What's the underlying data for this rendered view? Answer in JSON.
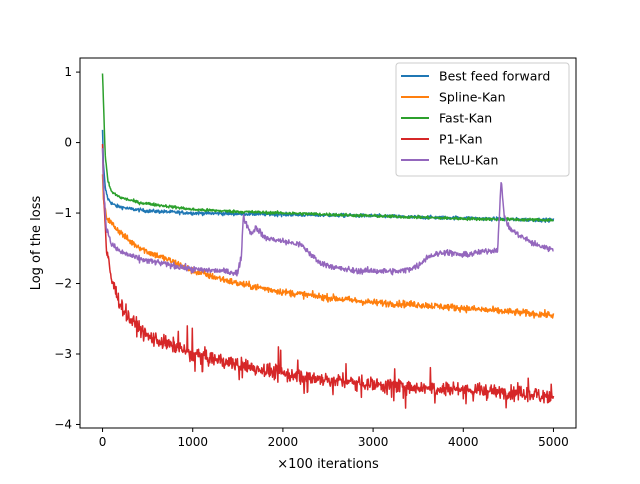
{
  "chart_data": {
    "type": "line",
    "title": "",
    "xlabel": "×100 iterations",
    "ylabel": "Log of the loss",
    "xlim": [
      -250,
      5250
    ],
    "ylim": [
      -4.05,
      1.2
    ],
    "xticks": [
      0,
      1000,
      2000,
      3000,
      4000,
      5000
    ],
    "xtick_labels": [
      "0",
      "1000",
      "2000",
      "3000",
      "4000",
      "5000"
    ],
    "yticks": [
      1,
      0,
      -1,
      -2,
      -3,
      -4
    ],
    "ytick_labels": [
      "1",
      "0",
      "−1",
      "−2",
      "−3",
      "−4"
    ],
    "grid": false,
    "legend": "top-right",
    "series": [
      {
        "name": "Best feed forward",
        "color": "#1f77b4",
        "noise": 0.018,
        "points": [
          [
            0,
            0.18
          ],
          [
            10,
            -0.3
          ],
          [
            30,
            -0.65
          ],
          [
            60,
            -0.8
          ],
          [
            100,
            -0.86
          ],
          [
            150,
            -0.9
          ],
          [
            300,
            -0.94
          ],
          [
            500,
            -0.97
          ],
          [
            1000,
            -1.0
          ],
          [
            1500,
            -1.01
          ],
          [
            2000,
            -1.02
          ],
          [
            2500,
            -1.03
          ],
          [
            3000,
            -1.04
          ],
          [
            3500,
            -1.06
          ],
          [
            4000,
            -1.07
          ],
          [
            4500,
            -1.09
          ],
          [
            5000,
            -1.1
          ]
        ]
      },
      {
        "name": "Spline-Kan",
        "color": "#ff7f0e",
        "noise": 0.035,
        "points": [
          [
            0,
            -0.45
          ],
          [
            10,
            -0.8
          ],
          [
            40,
            -1.05
          ],
          [
            100,
            -1.15
          ],
          [
            300,
            -1.4
          ],
          [
            500,
            -1.55
          ],
          [
            800,
            -1.7
          ],
          [
            1000,
            -1.82
          ],
          [
            1500,
            -2.0
          ],
          [
            2000,
            -2.12
          ],
          [
            2500,
            -2.2
          ],
          [
            3000,
            -2.27
          ],
          [
            3500,
            -2.3
          ],
          [
            4000,
            -2.35
          ],
          [
            4500,
            -2.4
          ],
          [
            5000,
            -2.45
          ]
        ]
      },
      {
        "name": "Fast-Kan",
        "color": "#2ca02c",
        "noise": 0.015,
        "points": [
          [
            0,
            0.98
          ],
          [
            10,
            0.6
          ],
          [
            30,
            -0.2
          ],
          [
            60,
            -0.55
          ],
          [
            100,
            -0.7
          ],
          [
            200,
            -0.78
          ],
          [
            400,
            -0.85
          ],
          [
            700,
            -0.9
          ],
          [
            1000,
            -0.95
          ],
          [
            1500,
            -0.98
          ],
          [
            2000,
            -1.0
          ],
          [
            2500,
            -1.02
          ],
          [
            3000,
            -1.04
          ],
          [
            3500,
            -1.06
          ],
          [
            4000,
            -1.08
          ],
          [
            4500,
            -1.09
          ],
          [
            5000,
            -1.1
          ]
        ]
      },
      {
        "name": "P1-Kan",
        "color": "#d62728",
        "noise": 0.075,
        "points": [
          [
            0,
            -0.02
          ],
          [
            10,
            -0.6
          ],
          [
            40,
            -1.5
          ],
          [
            100,
            -1.95
          ],
          [
            200,
            -2.3
          ],
          [
            300,
            -2.5
          ],
          [
            500,
            -2.75
          ],
          [
            800,
            -2.9
          ],
          [
            1000,
            -3.0
          ],
          [
            1500,
            -3.15
          ],
          [
            2000,
            -3.28
          ],
          [
            2500,
            -3.37
          ],
          [
            3000,
            -3.42
          ],
          [
            3500,
            -3.47
          ],
          [
            4000,
            -3.5
          ],
          [
            4500,
            -3.55
          ],
          [
            5000,
            -3.6
          ]
        ]
      },
      {
        "name": "ReLU-Kan",
        "color": "#9467bd",
        "noise": 0.03,
        "points": [
          [
            0,
            -0.08
          ],
          [
            10,
            -0.6
          ],
          [
            40,
            -1.2
          ],
          [
            100,
            -1.45
          ],
          [
            200,
            -1.55
          ],
          [
            400,
            -1.65
          ],
          [
            800,
            -1.75
          ],
          [
            1000,
            -1.8
          ],
          [
            1300,
            -1.82
          ],
          [
            1500,
            -1.85
          ],
          [
            1540,
            -1.6
          ],
          [
            1560,
            -1.05
          ],
          [
            1650,
            -1.3
          ],
          [
            1700,
            -1.2
          ],
          [
            1800,
            -1.35
          ],
          [
            2000,
            -1.4
          ],
          [
            2200,
            -1.45
          ],
          [
            2400,
            -1.7
          ],
          [
            2600,
            -1.78
          ],
          [
            2800,
            -1.82
          ],
          [
            3000,
            -1.82
          ],
          [
            3300,
            -1.83
          ],
          [
            3500,
            -1.75
          ],
          [
            3600,
            -1.62
          ],
          [
            3800,
            -1.55
          ],
          [
            4000,
            -1.6
          ],
          [
            4200,
            -1.55
          ],
          [
            4380,
            -1.52
          ],
          [
            4420,
            -0.55
          ],
          [
            4450,
            -1.0
          ],
          [
            4500,
            -1.2
          ],
          [
            4600,
            -1.3
          ],
          [
            4800,
            -1.45
          ],
          [
            5000,
            -1.52
          ]
        ]
      }
    ]
  }
}
